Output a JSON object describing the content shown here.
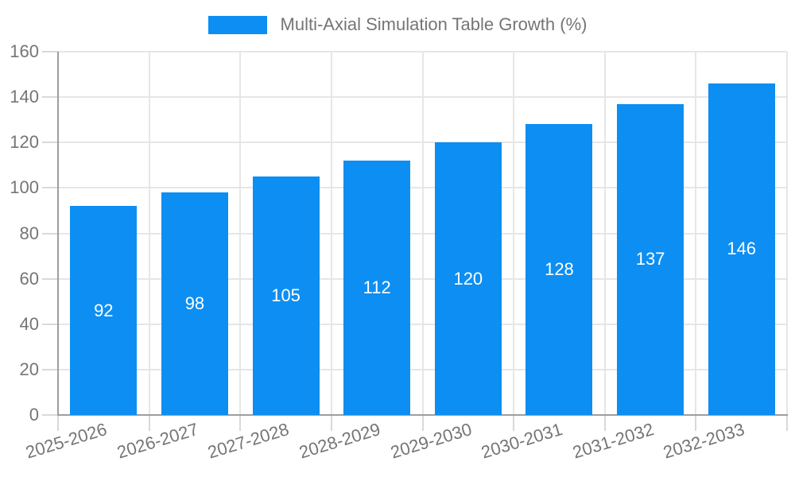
{
  "colors": {
    "bar": "#0d8ef2",
    "bar_label": "#ffffff",
    "axis_line": "#9e9e9e",
    "grid_line": "#e6e6e6",
    "tick_mark": "#d9d9d9",
    "axis_label": "#757575",
    "legend_text": "#757575"
  },
  "legend": {
    "label": "Multi-Axial Simulation Table Growth (%)"
  },
  "chart_data": {
    "type": "bar",
    "title": "Multi-Axial Simulation Table Growth (%)",
    "categories": [
      "2025-2026",
      "2026-2027",
      "2027-2028",
      "2028-2029",
      "2029-2030",
      "2030-2031",
      "2031-2032",
      "2032-2033"
    ],
    "series": [
      {
        "name": "Multi-Axial Simulation Table Growth (%)",
        "values": [
          92,
          98,
          105,
          112,
          120,
          128,
          137,
          146
        ]
      }
    ],
    "values": [
      92,
      98,
      105,
      112,
      120,
      128,
      137,
      146
    ],
    "value_labels": [
      "92",
      "98",
      "105",
      "112",
      "120",
      "128",
      "137",
      "146"
    ],
    "yticks": [
      0,
      20,
      40,
      60,
      80,
      100,
      120,
      140,
      160
    ],
    "ylim": [
      0,
      160
    ],
    "xlabel": "",
    "ylabel": "",
    "grid": true,
    "legend_position": "top-center",
    "bar_value_labels": "inside-middle",
    "x_tick_rotation_deg": -17
  }
}
